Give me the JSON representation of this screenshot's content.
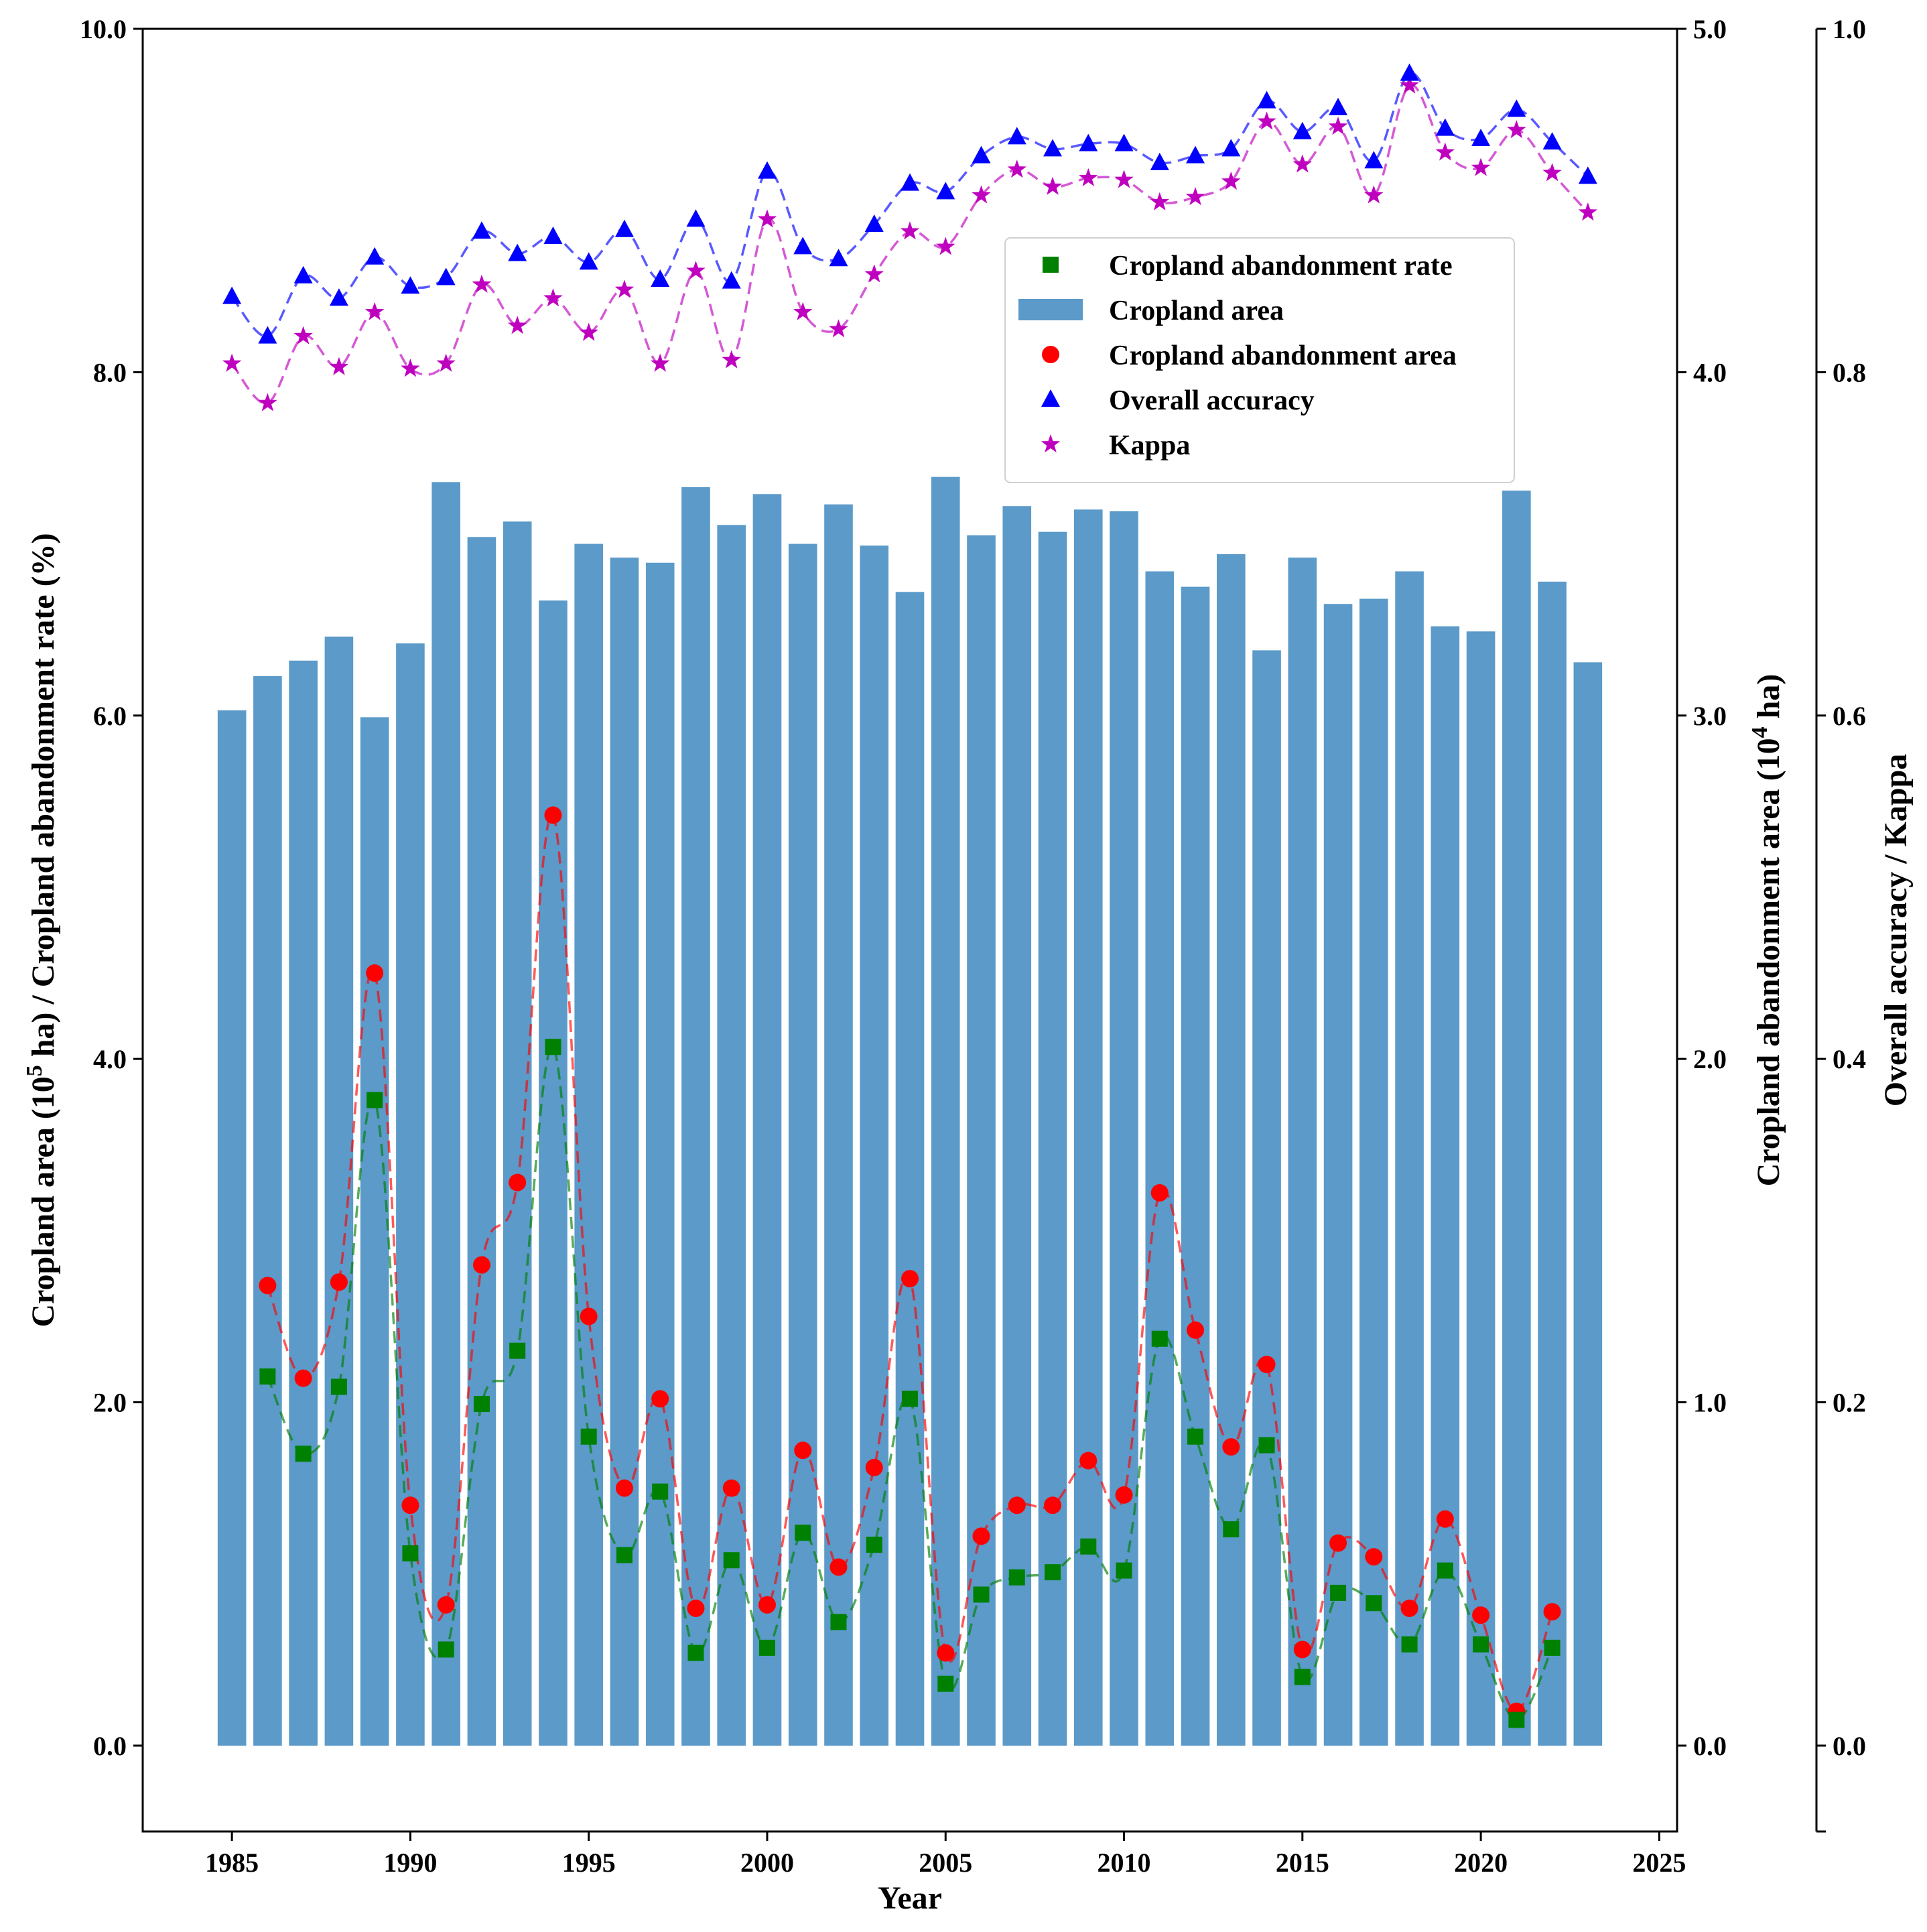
{
  "chart_data": {
    "type": "bar",
    "title": "",
    "xlabel": "Year",
    "ylabel_left": "Cropland area (10^5 ha) / Cropland abandonment rate (%)",
    "ylabel_left_parts": {
      "before": "Cropland area (10",
      "sup": "5",
      "after": " ha) / Cropland abandonment rate (%)"
    },
    "ylabel_right1": "Cropland abandonment area (10^4 ha)",
    "ylabel_right1_parts": {
      "before": "Cropland abandonment area (10",
      "sup": "4",
      "after": " ha)"
    },
    "ylabel_right2": "Overall accuracy / Kappa",
    "xlim": [
      1982.5,
      2025.5
    ],
    "ylim_left": [
      -0.5,
      10.0
    ],
    "ylim_right1": [
      -0.25,
      5.0
    ],
    "ylim_right2": [
      -0.05,
      1.0
    ],
    "xticks": [
      "1985",
      "1990",
      "1995",
      "2000",
      "2005",
      "2010",
      "2015",
      "2020",
      "2025"
    ],
    "yticks_left": [
      "0.0",
      "2.0",
      "4.0",
      "6.0",
      "8.0",
      "10.0"
    ],
    "yticks_right1": [
      "0.0",
      "1.0",
      "2.0",
      "3.0",
      "4.0",
      "5.0"
    ],
    "yticks_right2": [
      "0.0",
      "0.2",
      "0.4",
      "0.6",
      "0.8",
      "1.0"
    ],
    "legend_position": "upper-right",
    "legend": [
      {
        "label": "Cropland abandonment rate",
        "marker": "square",
        "color": "#008000"
      },
      {
        "label": "Cropland area",
        "marker": "bar",
        "color": "#5b9ac9"
      },
      {
        "label": "Cropland abandonment area",
        "marker": "circle",
        "color": "#ff0000"
      },
      {
        "label": "Overall accuracy",
        "marker": "triangle",
        "color": "#0000ff"
      },
      {
        "label": "Kappa",
        "marker": "star",
        "color": "#bf00bf"
      }
    ],
    "cropland_area": {
      "axis": "left",
      "color": "#5b9ac9",
      "x": [
        1985,
        1986,
        1987,
        1988,
        1989,
        1990,
        1991,
        1992,
        1993,
        1994,
        1995,
        1996,
        1997,
        1998,
        1999,
        2000,
        2001,
        2002,
        2003,
        2004,
        2005,
        2006,
        2007,
        2008,
        2009,
        2010,
        2011,
        2012,
        2013,
        2014,
        2015,
        2016,
        2017,
        2018,
        2019,
        2020,
        2021,
        2022,
        2023
      ],
      "values": [
        6.03,
        6.23,
        6.32,
        6.46,
        5.99,
        6.42,
        7.36,
        7.04,
        7.13,
        6.67,
        7.0,
        6.92,
        6.89,
        7.33,
        7.11,
        7.29,
        7.0,
        7.23,
        6.99,
        6.72,
        7.39,
        7.05,
        7.22,
        7.07,
        7.2,
        7.19,
        6.84,
        6.75,
        6.94,
        6.38,
        6.92,
        6.65,
        6.68,
        6.84,
        6.52,
        6.49,
        7.31,
        6.78,
        6.31
      ]
    },
    "abandonment_rate": {
      "axis": "left",
      "color": "#008000",
      "x": [
        1986,
        1987,
        1988,
        1989,
        1990,
        1991,
        1992,
        1993,
        1994,
        1995,
        1996,
        1997,
        1998,
        1999,
        2000,
        2001,
        2002,
        2003,
        2004,
        2005,
        2006,
        2007,
        2008,
        2009,
        2010,
        2011,
        2012,
        2013,
        2014,
        2015,
        2016,
        2017,
        2018,
        2019,
        2020,
        2021,
        2022
      ],
      "values": [
        2.15,
        1.7,
        2.09,
        3.76,
        1.12,
        0.56,
        1.99,
        2.3,
        4.07,
        1.8,
        1.11,
        1.48,
        0.54,
        1.08,
        0.57,
        1.24,
        0.72,
        1.17,
        2.02,
        0.36,
        0.88,
        0.98,
        1.01,
        1.16,
        1.02,
        2.37,
        1.8,
        1.26,
        1.75,
        0.4,
        0.89,
        0.83,
        0.59,
        1.02,
        0.59,
        0.15,
        0.57
      ]
    },
    "abandonment_area": {
      "axis": "right1",
      "color": "#ff0000",
      "x": [
        1986,
        1987,
        1988,
        1989,
        1990,
        1991,
        1992,
        1993,
        1994,
        1995,
        1996,
        1997,
        1998,
        1999,
        2000,
        2001,
        2002,
        2003,
        2004,
        2005,
        2006,
        2007,
        2008,
        2009,
        2010,
        2011,
        2012,
        2013,
        2014,
        2015,
        2016,
        2017,
        2018,
        2019,
        2020,
        2021,
        2022
      ],
      "values": [
        1.34,
        1.07,
        1.35,
        2.25,
        0.7,
        0.41,
        1.4,
        1.64,
        2.71,
        1.25,
        0.75,
        1.01,
        0.4,
        0.75,
        0.41,
        0.86,
        0.52,
        0.81,
        1.36,
        0.27,
        0.61,
        0.7,
        0.7,
        0.83,
        0.73,
        1.61,
        1.21,
        0.87,
        1.11,
        0.28,
        0.59,
        0.55,
        0.4,
        0.66,
        0.38,
        0.1,
        0.39
      ]
    },
    "overall_accuracy": {
      "axis": "right2",
      "color": "#0000ff",
      "x": [
        1985,
        1986,
        1987,
        1988,
        1989,
        1990,
        1991,
        1992,
        1993,
        1994,
        1995,
        1996,
        1997,
        1998,
        1999,
        2000,
        2001,
        2002,
        2003,
        2004,
        2005,
        2006,
        2007,
        2008,
        2009,
        2010,
        2011,
        2012,
        2013,
        2014,
        2015,
        2016,
        2017,
        2018,
        2019,
        2020,
        2021,
        2022,
        2023
      ],
      "values": [
        0.844,
        0.821,
        0.856,
        0.843,
        0.867,
        0.85,
        0.855,
        0.882,
        0.869,
        0.879,
        0.864,
        0.883,
        0.854,
        0.889,
        0.853,
        0.917,
        0.873,
        0.866,
        0.886,
        0.91,
        0.905,
        0.926,
        0.937,
        0.93,
        0.933,
        0.933,
        0.922,
        0.926,
        0.93,
        0.958,
        0.94,
        0.954,
        0.923,
        0.974,
        0.942,
        0.936,
        0.953,
        0.934,
        0.914
      ]
    },
    "kappa": {
      "axis": "right2",
      "color": "#bf00bf",
      "x": [
        1985,
        1986,
        1987,
        1988,
        1989,
        1990,
        1991,
        1992,
        1993,
        1994,
        1995,
        1996,
        1997,
        1998,
        1999,
        2000,
        2001,
        2002,
        2003,
        2004,
        2005,
        2006,
        2007,
        2008,
        2009,
        2010,
        2011,
        2012,
        2013,
        2014,
        2015,
        2016,
        2017,
        2018,
        2019,
        2020,
        2021,
        2022,
        2023
      ],
      "values": [
        0.805,
        0.782,
        0.821,
        0.803,
        0.835,
        0.802,
        0.805,
        0.851,
        0.827,
        0.843,
        0.823,
        0.848,
        0.805,
        0.859,
        0.807,
        0.889,
        0.835,
        0.825,
        0.857,
        0.882,
        0.873,
        0.903,
        0.918,
        0.908,
        0.913,
        0.912,
        0.899,
        0.902,
        0.911,
        0.946,
        0.921,
        0.943,
        0.903,
        0.967,
        0.928,
        0.919,
        0.941,
        0.916,
        0.893
      ]
    }
  }
}
